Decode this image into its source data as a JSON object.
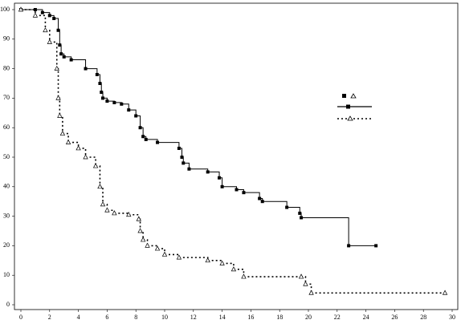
{
  "chart_data": {
    "type": "step",
    "xlim": [
      0,
      30
    ],
    "xticks": [
      0,
      2,
      4,
      6,
      8,
      10,
      12,
      14,
      16,
      18,
      20,
      22,
      24,
      26,
      28,
      30
    ],
    "ylim": [
      0,
      100
    ],
    "yticks": [
      0,
      10,
      20,
      30,
      40,
      50,
      60,
      70,
      80,
      90,
      100
    ],
    "series": [
      {
        "color": "#000000",
        "marker": "square",
        "dash": "solid",
        "x": [
          0,
          1,
          1.5,
          2,
          2.3,
          2.6,
          2.7,
          2.8,
          3,
          3.5,
          4.5,
          5.3,
          5.5,
          5.6,
          5.7,
          6,
          6.5,
          7,
          7.5,
          8,
          8.3,
          8.5,
          8.7,
          9.5,
          11,
          11.2,
          11.3,
          11.7,
          13,
          13.8,
          14,
          15,
          15.5,
          16.6,
          16.8,
          18.5,
          19.4,
          19.5,
          22.8,
          24.7
        ],
        "values": [
          100,
          100,
          99,
          98,
          97,
          93,
          88,
          85,
          84,
          83,
          80,
          78,
          75,
          72,
          70,
          69,
          68.5,
          68,
          66,
          64,
          60,
          57,
          56,
          55,
          53,
          50,
          48,
          46,
          45,
          43,
          40,
          39,
          38,
          36,
          35,
          33,
          31,
          29.5,
          20,
          20
        ]
      },
      {
        "color": "#000000",
        "marker": "triangle",
        "dash": "dotted",
        "x": [
          0,
          1,
          1.7,
          2,
          2.5,
          2.6,
          2.7,
          2.9,
          3.3,
          4,
          4.5,
          5.2,
          5.5,
          5.7,
          6,
          6.5,
          7.5,
          8.2,
          8.3,
          8.5,
          8.8,
          9.5,
          10,
          11,
          13,
          14,
          14.8,
          15.5,
          19.5,
          19.8,
          20.2,
          29.5
        ],
        "values": [
          100,
          98,
          93,
          89,
          80,
          70,
          64,
          58,
          55,
          53,
          50,
          47,
          40,
          34,
          32,
          31,
          30.5,
          29,
          25,
          22,
          20,
          19,
          17,
          16,
          15,
          14,
          12,
          9.5,
          9.5,
          7,
          4,
          4
        ]
      }
    ]
  }
}
